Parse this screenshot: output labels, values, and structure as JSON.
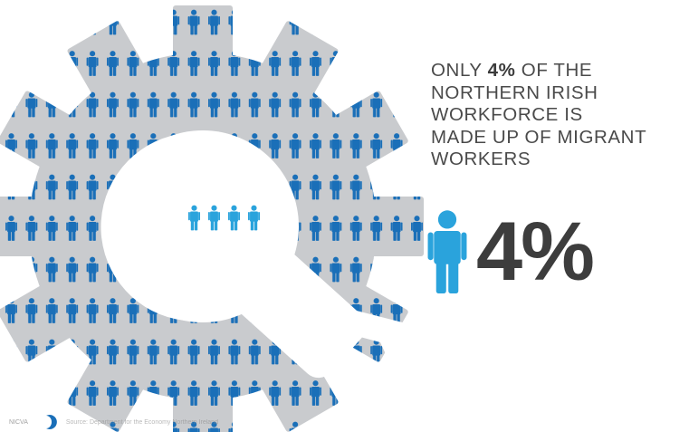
{
  "headline": {
    "line1_before": "ONLY ",
    "line1_highlight": "4%",
    "line1_after": " OF THE",
    "line2": "NORTHERN IRISH",
    "line3": "WORKFORCE IS",
    "line4": "MADE UP OF MIGRANT",
    "line5": "WORKERS"
  },
  "stat": {
    "value": "4%",
    "icon": "person-icon"
  },
  "graphic": {
    "icon": "gear-wrench-icon",
    "person_icon": "person-icon",
    "highlighted_people": 4
  },
  "footer": {
    "logo_text": "NICVA",
    "logo_icon": "crescent-logo-icon",
    "source": "Source: Department for the Economy Northern Ireland"
  },
  "colors": {
    "person_blue": "#1a6fb8",
    "highlight_blue": "#2aa3dc",
    "gear_grey": "#c9cbce",
    "wrench_white": "#ffffff",
    "text_dark": "#3d3d3d"
  }
}
